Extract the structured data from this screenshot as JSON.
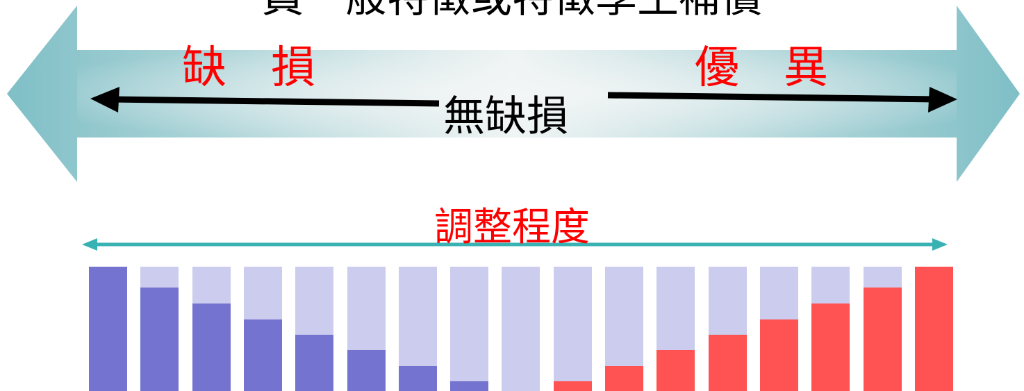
{
  "title": "員一般特徵或特徵學生補償",
  "labels": {
    "left": "缺　損",
    "right": "優　異",
    "center": "無缺損",
    "adjust": "調整程度"
  },
  "colors": {
    "big_arrow_center": "#eef3f3",
    "big_arrow_edge": "#7fbfc6",
    "black_arrow": "#000000",
    "teal_arrow": "#38b2b2",
    "bar_background": "#cccdee",
    "deficit_fill": "#7474d0",
    "excel_fill": "#ff5252",
    "red_text": "#ff0000"
  },
  "bars": [
    {
      "type": "deficit",
      "fill": 1.0
    },
    {
      "type": "deficit",
      "fill": 0.833
    },
    {
      "type": "deficit",
      "fill": 0.706
    },
    {
      "type": "deficit",
      "fill": 0.578
    },
    {
      "type": "deficit",
      "fill": 0.45
    },
    {
      "type": "deficit",
      "fill": 0.328
    },
    {
      "type": "deficit",
      "fill": 0.2
    },
    {
      "type": "deficit",
      "fill": 0.078
    },
    {
      "type": "none",
      "fill": 0.0
    },
    {
      "type": "excel",
      "fill": 0.078
    },
    {
      "type": "excel",
      "fill": 0.2
    },
    {
      "type": "excel",
      "fill": 0.328
    },
    {
      "type": "excel",
      "fill": 0.45
    },
    {
      "type": "excel",
      "fill": 0.578
    },
    {
      "type": "excel",
      "fill": 0.706
    },
    {
      "type": "excel",
      "fill": 0.833
    },
    {
      "type": "excel",
      "fill": 1.0
    }
  ]
}
